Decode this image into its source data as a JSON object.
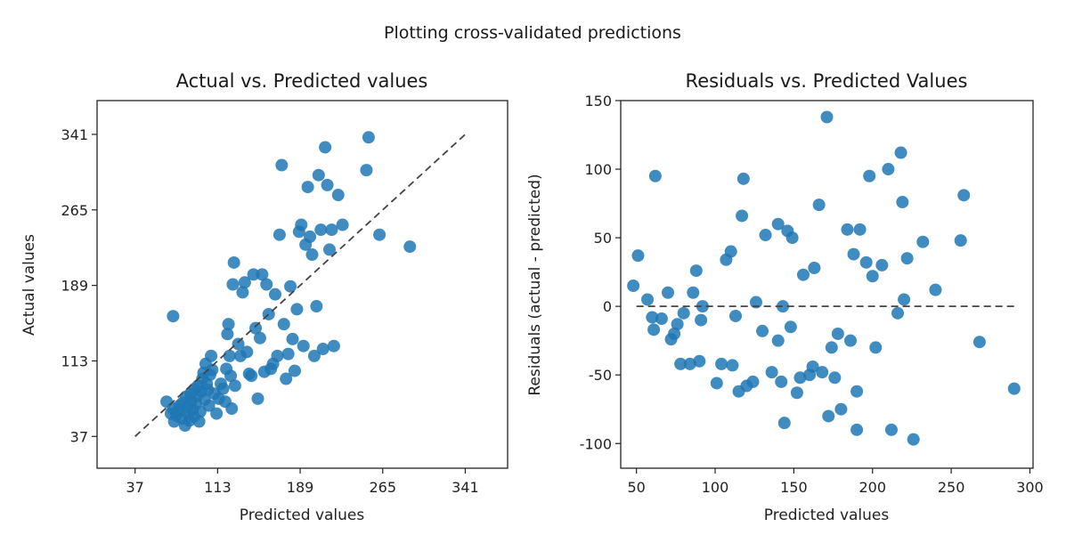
{
  "suptitle": "Plotting cross-validated predictions",
  "chart_data": [
    {
      "type": "scatter",
      "title": "Actual vs. Predicted values",
      "xlabel": "Predicted values",
      "ylabel": "Actual values",
      "xlim": [
        2,
        380
      ],
      "ylim": [
        5,
        375
      ],
      "xticks": [
        37,
        113,
        189,
        265,
        341
      ],
      "yticks": [
        37,
        113,
        189,
        265,
        341
      ],
      "reference_line": {
        "style": "dashed",
        "from": [
          37,
          37
        ],
        "to": [
          341,
          341
        ]
      },
      "point_color": "#1f77b4",
      "points": [
        [
          66,
          72
        ],
        [
          70,
          60
        ],
        [
          72,
          65
        ],
        [
          73,
          52
        ],
        [
          75,
          58
        ],
        [
          76,
          62
        ],
        [
          78,
          68
        ],
        [
          80,
          55
        ],
        [
          81,
          71
        ],
        [
          83,
          48
        ],
        [
          84,
          77
        ],
        [
          85,
          66
        ],
        [
          86,
          60
        ],
        [
          87,
          53
        ],
        [
          88,
          80
        ],
        [
          89,
          73
        ],
        [
          90,
          64
        ],
        [
          91,
          57
        ],
        [
          92,
          85
        ],
        [
          93,
          70
        ],
        [
          94,
          78
        ],
        [
          95,
          88
        ],
        [
          96,
          52
        ],
        [
          97,
          62
        ],
        [
          98,
          82
        ],
        [
          99,
          95
        ],
        [
          100,
          101
        ],
        [
          101,
          74
        ],
        [
          102,
          110
        ],
        [
          103,
          90
        ],
        [
          104,
          84
        ],
        [
          105,
          68
        ],
        [
          106,
          99
        ],
        [
          107,
          118
        ],
        [
          108,
          104
        ],
        [
          110,
          80
        ],
        [
          112,
          60
        ],
        [
          114,
          75
        ],
        [
          116,
          90
        ],
        [
          118,
          85
        ],
        [
          120,
          72
        ],
        [
          121,
          105
        ],
        [
          122,
          140
        ],
        [
          123,
          150
        ],
        [
          124,
          118
        ],
        [
          125,
          98
        ],
        [
          126,
          65
        ],
        [
          127,
          190
        ],
        [
          128,
          212
        ],
        [
          129,
          88
        ],
        [
          132,
          130
        ],
        [
          134,
          118
        ],
        [
          136,
          182
        ],
        [
          138,
          192
        ],
        [
          140,
          122
        ],
        [
          142,
          100
        ],
        [
          144,
          98
        ],
        [
          146,
          200
        ],
        [
          148,
          146
        ],
        [
          150,
          75
        ],
        [
          152,
          136
        ],
        [
          154,
          200
        ],
        [
          156,
          102
        ],
        [
          158,
          190
        ],
        [
          160,
          160
        ],
        [
          162,
          105
        ],
        [
          164,
          110
        ],
        [
          166,
          180
        ],
        [
          168,
          118
        ],
        [
          170,
          240
        ],
        [
          172,
          310
        ],
        [
          174,
          150
        ],
        [
          176,
          95
        ],
        [
          178,
          120
        ],
        [
          180,
          188
        ],
        [
          182,
          135
        ],
        [
          184,
          103
        ],
        [
          186,
          165
        ],
        [
          188,
          243
        ],
        [
          190,
          250
        ],
        [
          192,
          128
        ],
        [
          194,
          230
        ],
        [
          196,
          288
        ],
        [
          198,
          238
        ],
        [
          200,
          220
        ],
        [
          202,
          118
        ],
        [
          204,
          168
        ],
        [
          206,
          300
        ],
        [
          208,
          245
        ],
        [
          210,
          125
        ],
        [
          212,
          328
        ],
        [
          214,
          290
        ],
        [
          216,
          225
        ],
        [
          218,
          245
        ],
        [
          220,
          128
        ],
        [
          224,
          280
        ],
        [
          228,
          250
        ],
        [
          250,
          305
        ],
        [
          252,
          338
        ],
        [
          262,
          240
        ],
        [
          72,
          158
        ],
        [
          290,
          228
        ]
      ]
    },
    {
      "type": "scatter",
      "title": "Residuals vs. Predicted Values",
      "xlabel": "Predicted values",
      "ylabel": "Residuals (actual - predicted)",
      "xlim": [
        40,
        302
      ],
      "ylim": [
        -118,
        150
      ],
      "xticks": [
        50,
        100,
        150,
        200,
        250,
        300
      ],
      "yticks": [
        150,
        100,
        50,
        0,
        -50,
        -100
      ],
      "reference_line": {
        "style": "dashed",
        "from": [
          50,
          0
        ],
        "to": [
          290,
          0
        ]
      },
      "point_color": "#1f77b4",
      "points": [
        [
          48,
          15
        ],
        [
          51,
          37
        ],
        [
          57,
          5
        ],
        [
          60,
          -8
        ],
        [
          62,
          95
        ],
        [
          61,
          -17
        ],
        [
          66,
          -9
        ],
        [
          70,
          10
        ],
        [
          72,
          -24
        ],
        [
          74,
          -20
        ],
        [
          76,
          -13
        ],
        [
          78,
          -42
        ],
        [
          80,
          -5
        ],
        [
          84,
          -42
        ],
        [
          86,
          10
        ],
        [
          88,
          26
        ],
        [
          90,
          -40
        ],
        [
          91,
          -10
        ],
        [
          92,
          0
        ],
        [
          101,
          -56
        ],
        [
          104,
          -42
        ],
        [
          107,
          34
        ],
        [
          110,
          40
        ],
        [
          111,
          -43
        ],
        [
          113,
          -7
        ],
        [
          115,
          -62
        ],
        [
          117,
          66
        ],
        [
          118,
          93
        ],
        [
          120,
          -58
        ],
        [
          124,
          -55
        ],
        [
          126,
          3
        ],
        [
          130,
          -18
        ],
        [
          132,
          52
        ],
        [
          136,
          -48
        ],
        [
          140,
          60
        ],
        [
          140,
          -25
        ],
        [
          142,
          -55
        ],
        [
          143,
          0
        ],
        [
          144,
          -85
        ],
        [
          146,
          55
        ],
        [
          148,
          -15
        ],
        [
          149,
          50
        ],
        [
          152,
          -63
        ],
        [
          154,
          -52
        ],
        [
          156,
          23
        ],
        [
          160,
          -50
        ],
        [
          162,
          -44
        ],
        [
          163,
          28
        ],
        [
          166,
          74
        ],
        [
          168,
          -48
        ],
        [
          171,
          138
        ],
        [
          172,
          -80
        ],
        [
          174,
          -30
        ],
        [
          176,
          -52
        ],
        [
          178,
          -20
        ],
        [
          180,
          -75
        ],
        [
          184,
          56
        ],
        [
          186,
          -25
        ],
        [
          188,
          38
        ],
        [
          190,
          -90
        ],
        [
          190,
          -62
        ],
        [
          192,
          56
        ],
        [
          196,
          32
        ],
        [
          198,
          95
        ],
        [
          200,
          22
        ],
        [
          202,
          -30
        ],
        [
          206,
          30
        ],
        [
          210,
          100
        ],
        [
          212,
          -90
        ],
        [
          216,
          -5
        ],
        [
          218,
          112
        ],
        [
          219,
          76
        ],
        [
          220,
          5
        ],
        [
          222,
          35
        ],
        [
          226,
          -97
        ],
        [
          232,
          47
        ],
        [
          240,
          12
        ],
        [
          256,
          48
        ],
        [
          258,
          81
        ],
        [
          268,
          -26
        ],
        [
          290,
          -60
        ]
      ]
    }
  ]
}
